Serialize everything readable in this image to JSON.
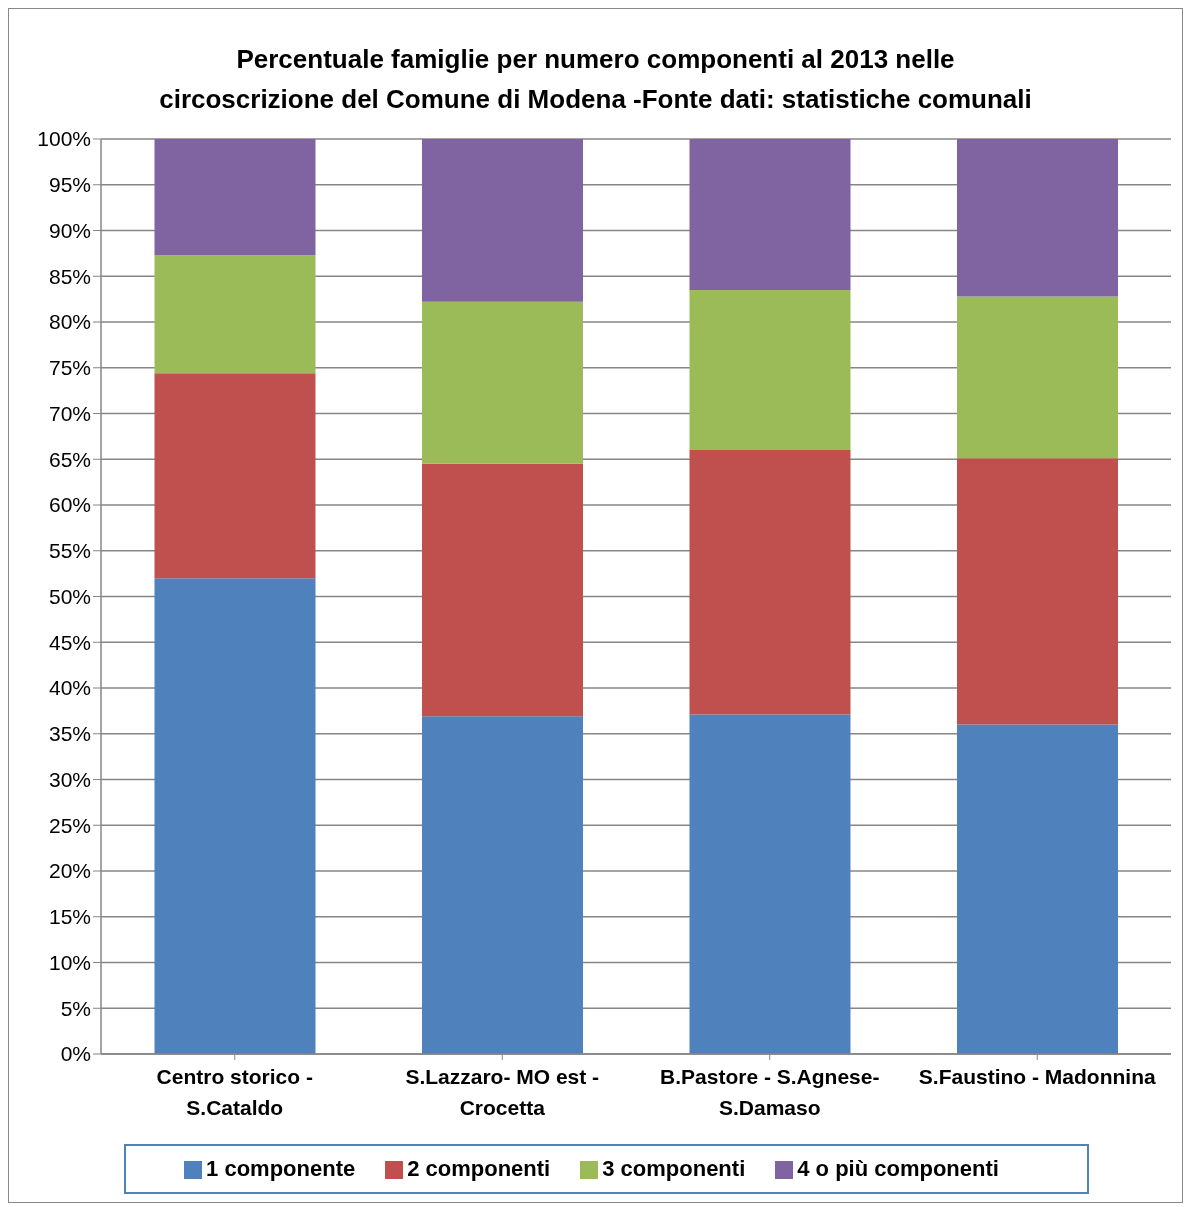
{
  "chart_data": {
    "type": "bar",
    "title": "Percentuale  famiglie per numero componenti al 2013 nelle circoscrizione del Comune di Modena -Fonte dati: statistiche comunali",
    "categories": [
      "Centro storico - S.Cataldo",
      "S.Lazzaro- MO est - Crocetta",
      "B.Pastore - S.Agnese- S.Damaso",
      "S.Faustino - Madonnina"
    ],
    "series": [
      {
        "name": "1 componente",
        "color": "#4f81bd",
        "values": [
          52.0,
          36.9,
          37.1,
          36.0
        ]
      },
      {
        "name": "2 componenti",
        "color": "#c0504d",
        "values": [
          22.4,
          27.6,
          28.9,
          29.1
        ]
      },
      {
        "name": "3 componenti",
        "color": "#9bbb59",
        "values": [
          12.9,
          17.7,
          17.5,
          17.7
        ]
      },
      {
        "name": "4 o più componenti",
        "color": "#8064a2",
        "values": [
          12.7,
          17.8,
          16.5,
          17.2
        ]
      }
    ],
    "stacked": true,
    "ylim": [
      0,
      100
    ],
    "yticks": [
      {
        "value": 0,
        "label": "0%"
      },
      {
        "value": 5,
        "label": "5%"
      },
      {
        "value": 10,
        "label": "10%"
      },
      {
        "value": 15,
        "label": "15%"
      },
      {
        "value": 20,
        "label": "20%"
      },
      {
        "value": 25,
        "label": "25%"
      },
      {
        "value": 30,
        "label": "30%"
      },
      {
        "value": 35,
        "label": "35%"
      },
      {
        "value": 40,
        "label": "40%"
      },
      {
        "value": 45,
        "label": "45%"
      },
      {
        "value": 50,
        "label": "50%"
      },
      {
        "value": 55,
        "label": "55%"
      },
      {
        "value": 60,
        "label": "60%"
      },
      {
        "value": 65,
        "label": "65%"
      },
      {
        "value": 70,
        "label": "70%"
      },
      {
        "value": 75,
        "label": "75%"
      },
      {
        "value": 80,
        "label": "80%"
      },
      {
        "value": 85,
        "label": "85%"
      },
      {
        "value": 90,
        "label": "90%"
      },
      {
        "value": 95,
        "label": "95%"
      },
      {
        "value": 100,
        "label": "100%"
      }
    ],
    "grid": "y",
    "legend": "bottom"
  }
}
